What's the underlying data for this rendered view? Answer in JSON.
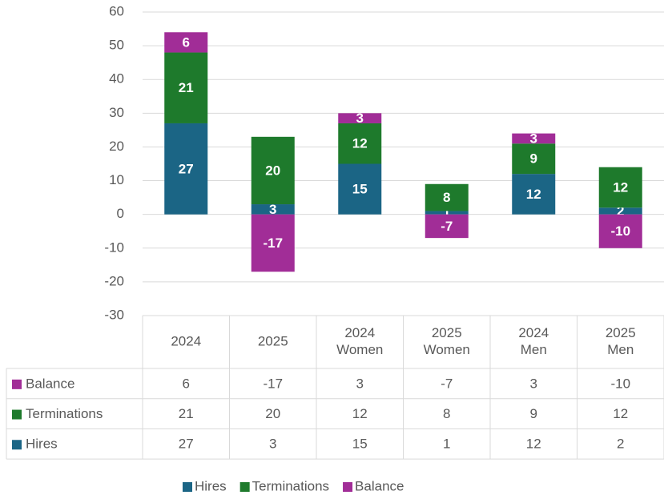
{
  "chart_data": {
    "type": "bar",
    "stacked": true,
    "categories": [
      "2024",
      "2025",
      "2024 Women",
      "2025 Women",
      "2024 Men",
      "2025 Men"
    ],
    "series": [
      {
        "name": "Hires",
        "color": "#1b6585",
        "values": [
          27,
          3,
          15,
          1,
          12,
          2
        ]
      },
      {
        "name": "Terminations",
        "color": "#1e7a2c",
        "values": [
          21,
          20,
          12,
          8,
          9,
          12
        ]
      },
      {
        "name": "Balance",
        "color": "#a12d97",
        "values": [
          6,
          -17,
          3,
          -7,
          3,
          -10
        ]
      }
    ],
    "ylim": [
      -30,
      60
    ],
    "yticks": [
      -30,
      -20,
      -10,
      0,
      10,
      20,
      30,
      40,
      50,
      60
    ],
    "grid": true,
    "data_table": true,
    "legend": "bottom"
  }
}
